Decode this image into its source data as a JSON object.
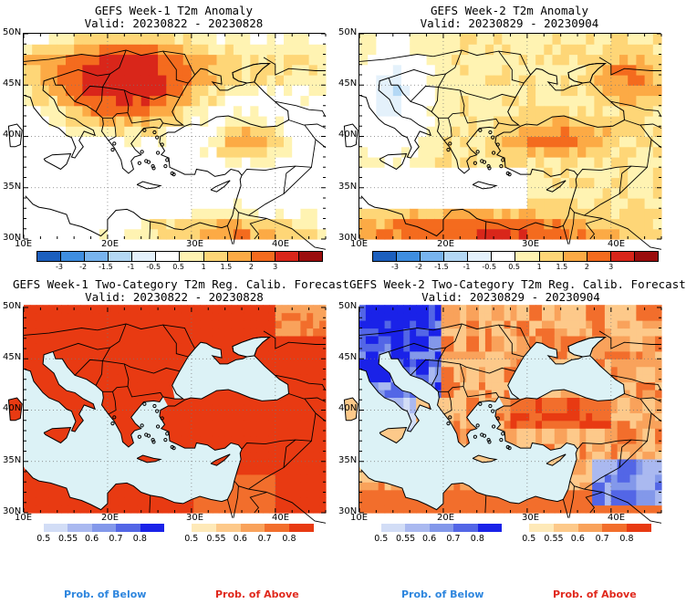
{
  "panels": [
    {
      "title": "GEFS Week-1 T2m Anomaly",
      "valid": "Valid: 20230822 - 20230828",
      "kind": "anomaly",
      "week": 1
    },
    {
      "title": "GEFS Week-2 T2m Anomaly",
      "valid": "Valid: 20230829 - 20230904",
      "kind": "anomaly",
      "week": 2
    },
    {
      "title": "GEFS Week-1 Two-Category T2m Reg. Calib. Forecast",
      "valid": "Valid: 20230822 - 20230828",
      "kind": "prob",
      "week": 1
    },
    {
      "title": "GEFS Week-2 Two-Category T2m Reg. Calib. Forecast",
      "valid": "Valid: 20230829 - 20230904",
      "kind": "prob",
      "week": 2
    }
  ],
  "lat_labels": [
    "50N",
    "45N",
    "40N",
    "35N",
    "30N"
  ],
  "lon_labels": [
    "10E",
    "20E",
    "30E",
    "40E"
  ],
  "anomaly_colorbar": {
    "labels": [
      "-3",
      "-2",
      "-1.5",
      "-1",
      "-0.5",
      "0.5",
      "1",
      "1.5",
      "2",
      "3"
    ],
    "colors": [
      "#1c5fbe",
      "#3f8ee0",
      "#78b4ee",
      "#b4d8f5",
      "#e4f1fb",
      "#ffffff",
      "#fff3b2",
      "#fed677",
      "#fcaa45",
      "#f46b1e",
      "#d9261a",
      "#9b0d0d"
    ]
  },
  "below_colorbar": {
    "labels": [
      "0.5",
      "0.55",
      "0.6",
      "0.7",
      "0.8"
    ],
    "colors": [
      "#d2ddf6",
      "#aab9f0",
      "#8398ea",
      "#5366e6",
      "#1a22e8"
    ]
  },
  "above_colorbar": {
    "labels": [
      "0.5",
      "0.55",
      "0.6",
      "0.7",
      "0.8"
    ],
    "colors": [
      "#fee9b8",
      "#fdc98a",
      "#f9a25b",
      "#f26e2c",
      "#e83a12"
    ]
  },
  "footer": {
    "below": "Prob. of Below",
    "above": "Prob. of Above"
  },
  "colors": {
    "sea_prob": "#dcf2f6",
    "land_base": "#ffffff",
    "border": "#000000",
    "grid": "#777777",
    "below_text": "#2e86de",
    "above_text": "#e0281c"
  }
}
